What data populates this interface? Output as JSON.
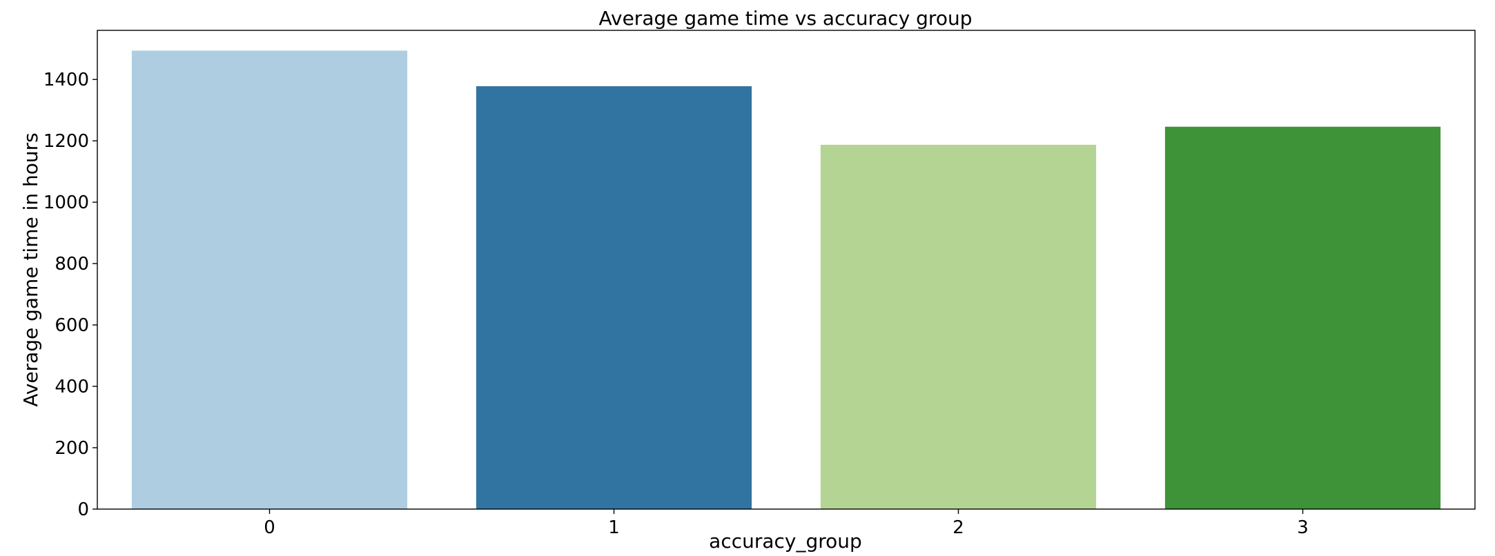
{
  "chart_data": {
    "type": "bar",
    "title": "Average game time vs accuracy group",
    "xlabel": "accuracy_group",
    "ylabel": "Average game time in hours",
    "categories": [
      "0",
      "1",
      "2",
      "3"
    ],
    "values": [
      1494,
      1378,
      1187,
      1246
    ],
    "colors": [
      "#aecde1",
      "#3274a1",
      "#b4d494",
      "#3e9238"
    ],
    "ylim": [
      0,
      1560
    ],
    "yticks": [
      0,
      200,
      400,
      600,
      800,
      1000,
      1200,
      1400
    ],
    "grid": false,
    "legend": "none"
  }
}
